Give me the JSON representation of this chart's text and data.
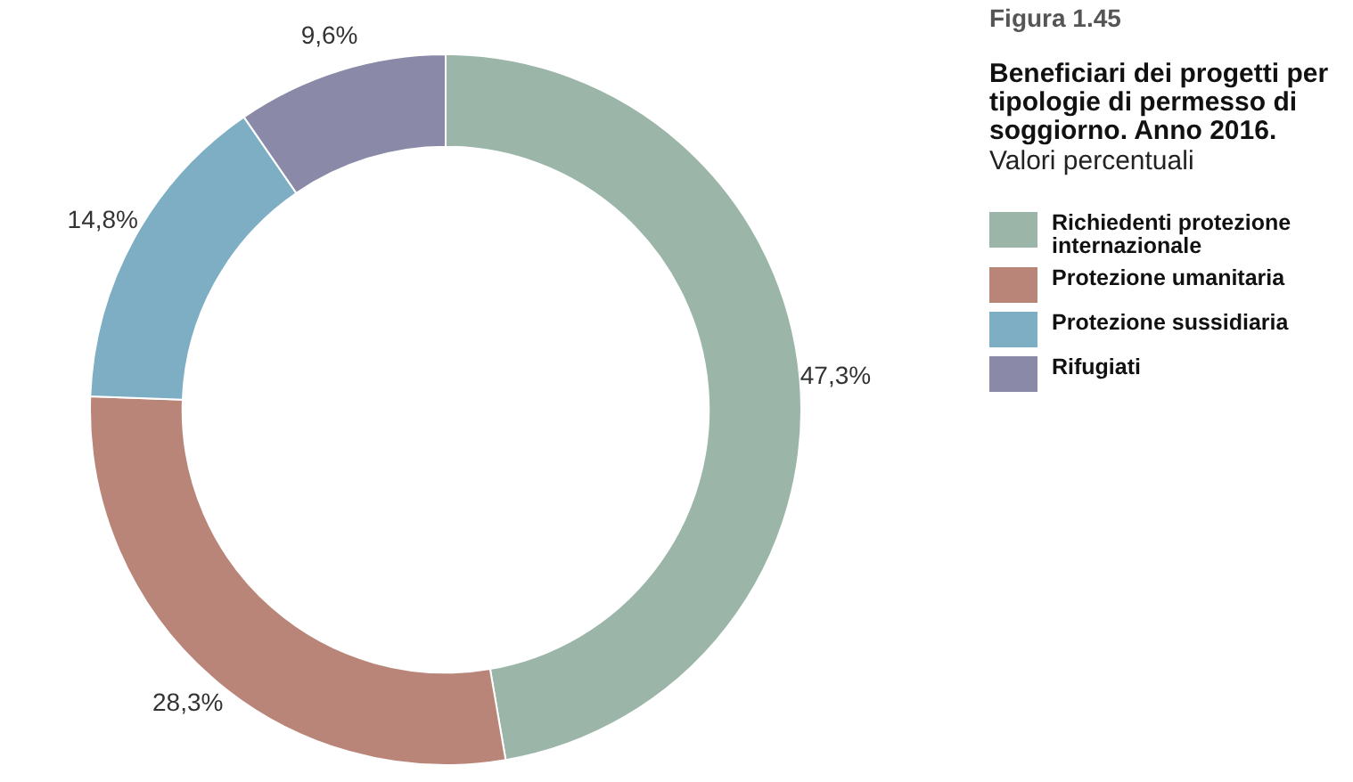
{
  "chart_data": {
    "type": "donut",
    "title": "Figura 1.45",
    "subtitle": "Beneficiari dei progetti per tipologie di permesso di soggiorno. Anno 2016.",
    "annotations": [
      "Valori percentuali"
    ],
    "categories": [
      "Richiedenti protezione internazionale",
      "Protezione umanitaria",
      "Protezione sussidiaria",
      "Rifugiati"
    ],
    "values": [
      47.3,
      28.3,
      14.8,
      9.6
    ],
    "value_labels": [
      "47,3%",
      "28,3%",
      "14,8%",
      "9,6%"
    ],
    "colors": [
      "#9bb5a8",
      "#b98579",
      "#7eaec4",
      "#8a8aa8"
    ],
    "legend": "right"
  }
}
